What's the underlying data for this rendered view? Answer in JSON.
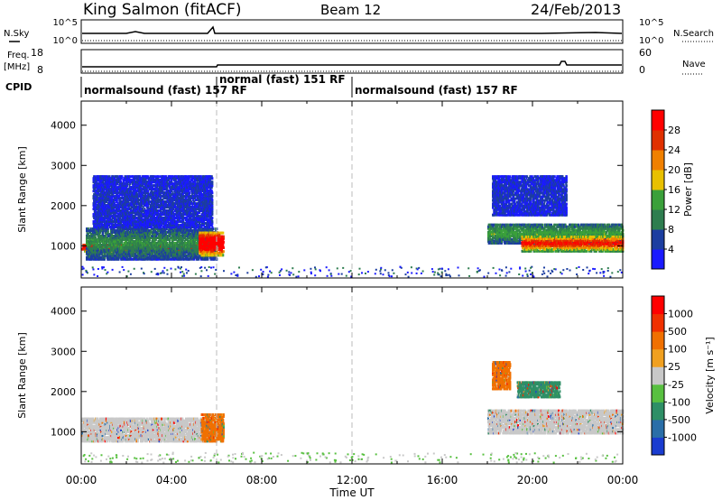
{
  "header": {
    "station": "King Salmon (fitACF)",
    "beam": "Beam 12",
    "date": "24/Feb/2013"
  },
  "side_labels": {
    "nsky": "N.Sky",
    "freq": "Freq.",
    "freq_unit": "[MHz]",
    "cpid": "CPID",
    "nsearch": "N.Search",
    "nave": "Nave"
  },
  "noise_axis": {
    "left_top": "10^5",
    "left_bottom": "10^0",
    "right_top": "10^5",
    "right_bottom": "10^0"
  },
  "freq_axis": {
    "left_top": "18",
    "left_bottom": "8",
    "right_top": "60",
    "right_bottom": "0"
  },
  "cpid_segments": [
    {
      "label": "normalsound (fast) 157 RF",
      "start_h": 0,
      "end_h": 6
    },
    {
      "label": "normal (fast) 151 RF",
      "start_h": 6,
      "end_h": 12
    },
    {
      "label": "normalsound (fast) 157 RF",
      "start_h": 12,
      "end_h": 24
    }
  ],
  "chart_data": [
    {
      "type": "heatmap",
      "name": "power",
      "xlabel": "",
      "ylabel": "Slant Range [km]",
      "x_range_h": [
        0,
        24
      ],
      "ylim": [
        200,
        4600
      ],
      "y_ticks": [
        "1000",
        "2000",
        "3000",
        "4000"
      ],
      "colorbar": {
        "label": "Power [dB]",
        "tick_labels": [
          "4",
          "8",
          "12",
          "16",
          "20",
          "24",
          "28"
        ],
        "colors": [
          "#1a1aff",
          "#1c3ea0",
          "#2e7d4f",
          "#3aa03a",
          "#e8c000",
          "#f08000",
          "#e03000",
          "#ff0000"
        ]
      },
      "bands": [
        {
          "t0": 0.0,
          "t1": 6.0,
          "r0": 900,
          "r1": 1100,
          "level": 0.75
        },
        {
          "t0": 0.2,
          "t1": 6.0,
          "r0": 700,
          "r1": 1500,
          "level": 0.2
        },
        {
          "t0": 5.2,
          "t1": 6.3,
          "r0": 800,
          "r1": 1400,
          "level": 0.85
        },
        {
          "t0": 0.5,
          "t1": 5.8,
          "r0": 1500,
          "r1": 2800,
          "level": 0.05
        },
        {
          "t0": 18.0,
          "t1": 24.0,
          "r0": 1100,
          "r1": 1600,
          "level": 0.25
        },
        {
          "t0": 19.5,
          "t1": 24.0,
          "r0": 900,
          "r1": 1300,
          "level": 0.6
        },
        {
          "t0": 18.2,
          "t1": 21.5,
          "r0": 1800,
          "r1": 2800,
          "level": 0.05
        }
      ]
    },
    {
      "type": "heatmap",
      "name": "velocity",
      "xlabel": "Time UT",
      "ylabel": "Slant Range [km]",
      "x_range_h": [
        0,
        24
      ],
      "ylim": [
        200,
        4600
      ],
      "y_ticks": [
        "1000",
        "2000",
        "3000",
        "4000"
      ],
      "x_ticks": [
        "00:00",
        "04:00",
        "08:00",
        "12:00",
        "16:00",
        "20:00",
        "00:00"
      ],
      "colorbar": {
        "label": "Velocity [m s⁻¹]",
        "tick_labels": [
          "1000",
          "500",
          "100",
          "25",
          "-25",
          "-100",
          "-500",
          "-1000"
        ],
        "colors": [
          "#1a3cd0",
          "#2a6ea8",
          "#2e8f66",
          "#58c040",
          "#c8c8c8",
          "#f0a020",
          "#f07000",
          "#f03000",
          "#ff0000"
        ]
      },
      "bands": [
        {
          "t0": 0.0,
          "t1": 6.0,
          "r0": 800,
          "r1": 1400,
          "color": "#c8c8c8"
        },
        {
          "t0": 5.3,
          "t1": 6.3,
          "r0": 800,
          "r1": 1500,
          "color": "#f07000"
        },
        {
          "t0": 18.0,
          "t1": 24.0,
          "r0": 1000,
          "r1": 1600,
          "color": "#c8c8c8"
        },
        {
          "t0": 18.2,
          "t1": 19.0,
          "r0": 2100,
          "r1": 2800,
          "color": "#f07000"
        },
        {
          "t0": 19.3,
          "t1": 21.2,
          "r0": 1900,
          "r1": 2300,
          "color": "#2e8f66"
        }
      ]
    }
  ]
}
